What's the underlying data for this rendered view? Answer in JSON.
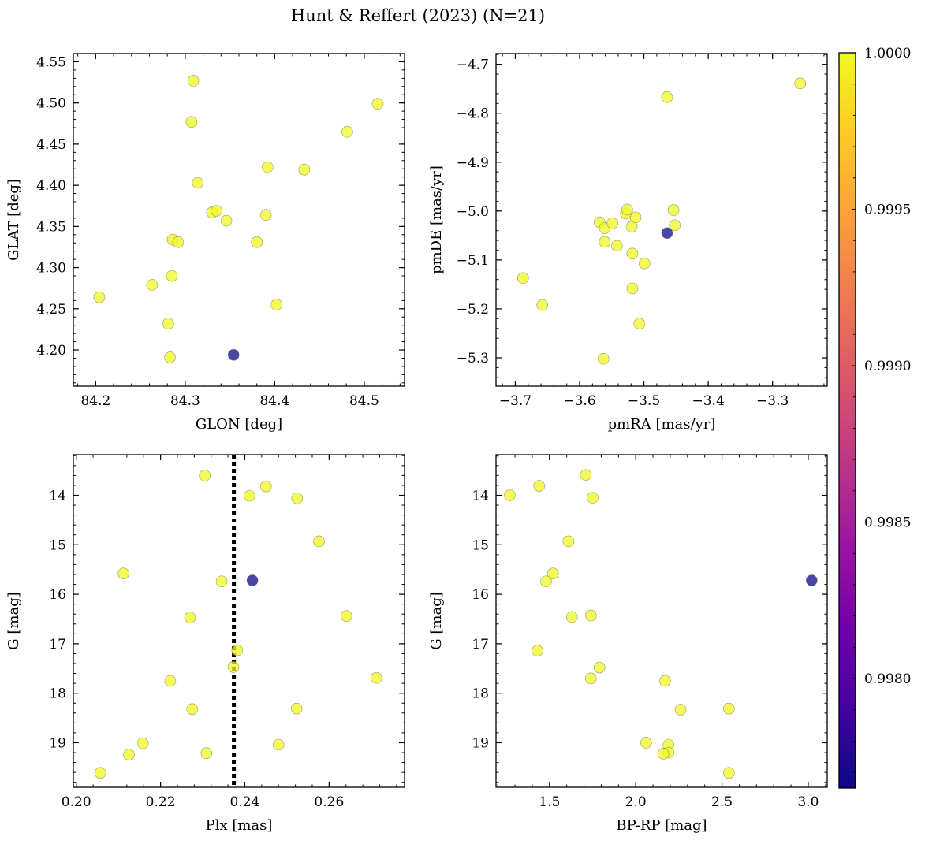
{
  "figure": {
    "title": "Hunt & Reffert (2023) (N=21)"
  },
  "colors": {
    "cmap": [
      "#0d0887",
      "#46039f",
      "#7201a8",
      "#9c179e",
      "#bd3786",
      "#d8576b",
      "#ed7953",
      "#fb9f3a",
      "#fdca26",
      "#f0f921"
    ],
    "marker_alpha": 0.75,
    "marker_edge": "#555555",
    "vline": "#000000"
  },
  "colorbar": {
    "min": 0.99765,
    "max": 1.0,
    "ticks": [
      0.998,
      0.9985,
      0.999,
      0.9995,
      1.0
    ],
    "tick_labels": [
      "0.9980",
      "0.9985",
      "0.9990",
      "0.9995",
      "1.0000"
    ]
  },
  "chart_data": [
    {
      "id": "sky",
      "type": "scatter",
      "xlabel": "GLON [deg]",
      "ylabel": "GLAT [deg]",
      "xlim": [
        84.175,
        84.545
      ],
      "ylim": [
        4.156,
        4.56
      ],
      "invert_y": false,
      "xticks": [
        84.2,
        84.3,
        84.4,
        84.5
      ],
      "xtick_labels": [
        "84.2",
        "84.3",
        "84.4",
        "84.5"
      ],
      "yticks": [
        4.2,
        4.25,
        4.3,
        4.35,
        4.4,
        4.45,
        4.5,
        4.55
      ],
      "ytick_labels": [
        "4.20",
        "4.25",
        "4.30",
        "4.35",
        "4.40",
        "4.45",
        "4.50",
        "4.55"
      ],
      "points": [
        {
          "x": 84.204,
          "y": 4.264,
          "c": 1.0
        },
        {
          "x": 84.263,
          "y": 4.279,
          "c": 1.0
        },
        {
          "x": 84.281,
          "y": 4.232,
          "c": 1.0
        },
        {
          "x": 84.283,
          "y": 4.191,
          "c": 1.0
        },
        {
          "x": 84.285,
          "y": 4.29,
          "c": 1.0
        },
        {
          "x": 84.286,
          "y": 4.334,
          "c": 1.0
        },
        {
          "x": 84.292,
          "y": 4.331,
          "c": 1.0
        },
        {
          "x": 84.307,
          "y": 4.477,
          "c": 1.0
        },
        {
          "x": 84.309,
          "y": 4.527,
          "c": 1.0
        },
        {
          "x": 84.314,
          "y": 4.403,
          "c": 1.0
        },
        {
          "x": 84.33,
          "y": 4.367,
          "c": 1.0
        },
        {
          "x": 84.335,
          "y": 4.369,
          "c": 1.0
        },
        {
          "x": 84.346,
          "y": 4.357,
          "c": 1.0
        },
        {
          "x": 84.38,
          "y": 4.331,
          "c": 1.0
        },
        {
          "x": 84.39,
          "y": 4.364,
          "c": 1.0
        },
        {
          "x": 84.392,
          "y": 4.422,
          "c": 1.0
        },
        {
          "x": 84.402,
          "y": 4.255,
          "c": 1.0
        },
        {
          "x": 84.433,
          "y": 4.419,
          "c": 1.0
        },
        {
          "x": 84.481,
          "y": 4.465,
          "c": 1.0
        },
        {
          "x": 84.515,
          "y": 4.499,
          "c": 1.0
        },
        {
          "x": 84.354,
          "y": 4.194,
          "c": 0.99765
        }
      ]
    },
    {
      "id": "pm",
      "type": "scatter",
      "xlabel": "pmRA [mas/yr]",
      "ylabel": "pmDE [mas/yr]",
      "xlim": [
        -3.73,
        -3.215
      ],
      "ylim": [
        -5.358,
        -4.678
      ],
      "invert_y": false,
      "xticks": [
        -3.7,
        -3.6,
        -3.5,
        -3.4,
        -3.3
      ],
      "xtick_labels": [
        "−3.7",
        "−3.6",
        "−3.5",
        "−3.4",
        "−3.3"
      ],
      "yticks": [
        -5.3,
        -5.2,
        -5.1,
        -5.0,
        -4.9,
        -4.8,
        -4.7
      ],
      "ytick_labels": [
        "−5.3",
        "−5.2",
        "−5.1",
        "−5.0",
        "−4.9",
        "−4.8",
        "−4.7"
      ],
      "points": [
        {
          "x": -3.688,
          "y": -5.137,
          "c": 1.0
        },
        {
          "x": -3.658,
          "y": -5.192,
          "c": 1.0
        },
        {
          "x": -3.569,
          "y": -5.023,
          "c": 1.0
        },
        {
          "x": -3.563,
          "y": -5.302,
          "c": 1.0
        },
        {
          "x": -3.561,
          "y": -5.035,
          "c": 1.0
        },
        {
          "x": -3.561,
          "y": -5.063,
          "c": 1.0
        },
        {
          "x": -3.549,
          "y": -5.025,
          "c": 1.0
        },
        {
          "x": -3.542,
          "y": -5.071,
          "c": 1.0
        },
        {
          "x": -3.528,
          "y": -5.005,
          "c": 1.0
        },
        {
          "x": -3.526,
          "y": -4.997,
          "c": 1.0
        },
        {
          "x": -3.519,
          "y": -5.032,
          "c": 1.0
        },
        {
          "x": -3.518,
          "y": -5.087,
          "c": 1.0
        },
        {
          "x": -3.518,
          "y": -5.158,
          "c": 1.0
        },
        {
          "x": -3.513,
          "y": -5.013,
          "c": 1.0
        },
        {
          "x": -3.507,
          "y": -5.23,
          "c": 1.0
        },
        {
          "x": -3.499,
          "y": -5.107,
          "c": 1.0
        },
        {
          "x": -3.464,
          "y": -4.767,
          "c": 1.0
        },
        {
          "x": -3.454,
          "y": -4.998,
          "c": 1.0
        },
        {
          "x": -3.452,
          "y": -5.029,
          "c": 1.0
        },
        {
          "x": -3.257,
          "y": -4.739,
          "c": 1.0
        },
        {
          "x": -3.464,
          "y": -5.045,
          "c": 0.99765
        }
      ]
    },
    {
      "id": "plx",
      "type": "scatter",
      "xlabel": "Plx [mas]",
      "ylabel": "G [mag]",
      "xlim": [
        0.1993,
        0.2779
      ],
      "ylim": [
        19.9,
        13.18
      ],
      "invert_y": true,
      "xticks": [
        0.2,
        0.22,
        0.24,
        0.26
      ],
      "xtick_labels": [
        "0.20",
        "0.22",
        "0.24",
        "0.26"
      ],
      "yticks": [
        14,
        15,
        16,
        17,
        18,
        19
      ],
      "ytick_labels": [
        "14",
        "15",
        "16",
        "17",
        "18",
        "19"
      ],
      "vline": 0.2374,
      "points": [
        {
          "x": 0.2305,
          "y": 13.6,
          "c": 1.0
        },
        {
          "x": 0.245,
          "y": 13.82,
          "c": 1.0
        },
        {
          "x": 0.2411,
          "y": 14.01,
          "c": 1.0
        },
        {
          "x": 0.2524,
          "y": 14.06,
          "c": 1.0
        },
        {
          "x": 0.2576,
          "y": 14.93,
          "c": 1.0
        },
        {
          "x": 0.2112,
          "y": 15.58,
          "c": 1.0
        },
        {
          "x": 0.2345,
          "y": 15.74,
          "c": 1.0
        },
        {
          "x": 0.2641,
          "y": 16.44,
          "c": 1.0
        },
        {
          "x": 0.227,
          "y": 16.47,
          "c": 1.0
        },
        {
          "x": 0.2382,
          "y": 17.13,
          "c": 1.0
        },
        {
          "x": 0.2373,
          "y": 17.47,
          "c": 1.0
        },
        {
          "x": 0.2712,
          "y": 17.69,
          "c": 1.0
        },
        {
          "x": 0.2223,
          "y": 17.75,
          "c": 1.0
        },
        {
          "x": 0.2275,
          "y": 18.32,
          "c": 1.0
        },
        {
          "x": 0.2523,
          "y": 18.31,
          "c": 1.0
        },
        {
          "x": 0.2158,
          "y": 19.01,
          "c": 1.0
        },
        {
          "x": 0.248,
          "y": 19.04,
          "c": 1.0
        },
        {
          "x": 0.2309,
          "y": 19.21,
          "c": 1.0
        },
        {
          "x": 0.2125,
          "y": 19.24,
          "c": 1.0
        },
        {
          "x": 0.2057,
          "y": 19.61,
          "c": 1.0
        },
        {
          "x": 0.2418,
          "y": 15.72,
          "c": 0.99765
        }
      ]
    },
    {
      "id": "cmd",
      "type": "scatter",
      "xlabel": "BP-RP [mag]",
      "ylabel": "G [mag]",
      "xlim": [
        1.19,
        3.11
      ],
      "ylim": [
        19.9,
        13.18
      ],
      "invert_y": true,
      "xticks": [
        1.5,
        2.0,
        2.5,
        3.0
      ],
      "xtick_labels": [
        "1.5",
        "2.0",
        "2.5",
        "3.0"
      ],
      "yticks": [
        14,
        15,
        16,
        17,
        18,
        19
      ],
      "ytick_labels": [
        "14",
        "15",
        "16",
        "17",
        "18",
        "19"
      ],
      "points": [
        {
          "x": 1.27,
          "y": 14.0,
          "c": 1.0
        },
        {
          "x": 1.44,
          "y": 13.81,
          "c": 1.0
        },
        {
          "x": 1.71,
          "y": 13.59,
          "c": 1.0
        },
        {
          "x": 1.75,
          "y": 14.05,
          "c": 1.0
        },
        {
          "x": 1.61,
          "y": 14.93,
          "c": 1.0
        },
        {
          "x": 1.52,
          "y": 15.58,
          "c": 1.0
        },
        {
          "x": 1.48,
          "y": 15.74,
          "c": 1.0
        },
        {
          "x": 1.63,
          "y": 16.46,
          "c": 1.0
        },
        {
          "x": 1.74,
          "y": 16.43,
          "c": 1.0
        },
        {
          "x": 1.43,
          "y": 17.14,
          "c": 1.0
        },
        {
          "x": 1.79,
          "y": 17.48,
          "c": 1.0
        },
        {
          "x": 1.74,
          "y": 17.7,
          "c": 1.0
        },
        {
          "x": 2.17,
          "y": 17.75,
          "c": 1.0
        },
        {
          "x": 2.26,
          "y": 18.33,
          "c": 1.0
        },
        {
          "x": 2.54,
          "y": 18.31,
          "c": 1.0
        },
        {
          "x": 2.06,
          "y": 19.0,
          "c": 1.0
        },
        {
          "x": 2.19,
          "y": 19.04,
          "c": 1.0
        },
        {
          "x": 2.19,
          "y": 19.2,
          "c": 1.0
        },
        {
          "x": 2.16,
          "y": 19.22,
          "c": 1.0
        },
        {
          "x": 2.54,
          "y": 19.61,
          "c": 1.0
        },
        {
          "x": 3.02,
          "y": 15.72,
          "c": 0.99765
        }
      ]
    }
  ]
}
